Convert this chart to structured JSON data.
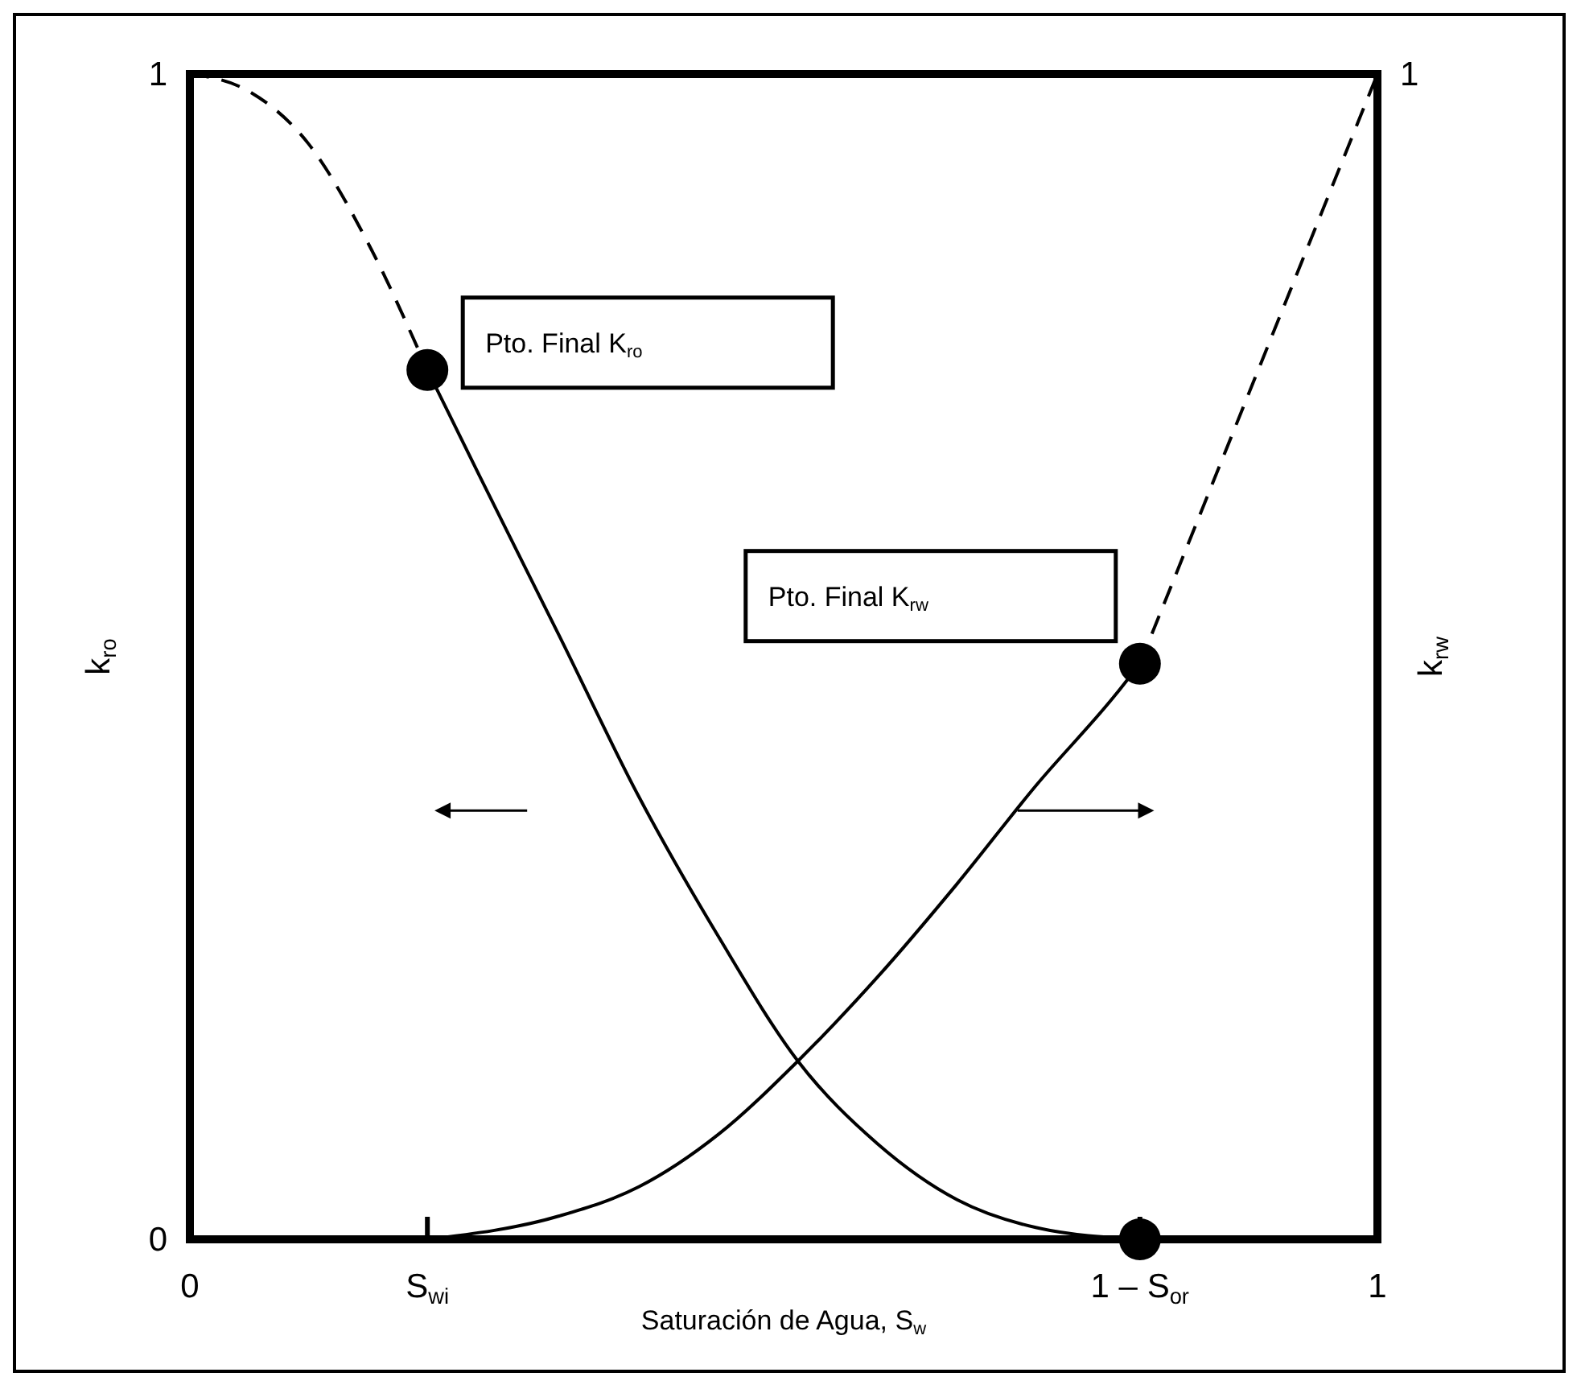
{
  "chart_data": {
    "type": "line",
    "xlabel": "Saturación de Agua, S$_{w}$",
    "ylabel": "k$_{ro}$",
    "y2label": "k$_{rw}$",
    "xlim": [
      0,
      1
    ],
    "xticks": [
      0,
      {
        "value": 0.2,
        "label": "S$_{wi}$"
      },
      {
        "value": 0.8,
        "label": "1 – S$_{or}$"
      },
      1
    ],
    "ylim": [
      0,
      1
    ],
    "yticks": [
      0,
      1
    ],
    "series": [
      {
        "color": "#000000",
        "line_style": "dashed",
        "x": [
          0,
          0.05,
          0.1,
          0.15,
          0.2
        ],
        "values": [
          1,
          0.985,
          0.94,
          0.855,
          0.746
        ]
      },
      {
        "color": "#000000",
        "line_style": "solid",
        "x": [
          0.2,
          0.244,
          0.311,
          0.378,
          0.445,
          0.512,
          0.579,
          0.646,
          0.713,
          0.8
        ],
        "values": [
          0.746,
          0.655,
          0.518,
          0.38,
          0.26,
          0.153,
          0.082,
          0.034,
          0.01,
          0
        ]
      },
      {
        "color": "#000000",
        "line_style": "solid",
        "x": [
          0.2,
          0.311,
          0.378,
          0.445,
          0.512,
          0.579,
          0.646,
          0.713,
          0.78,
          0.8
        ],
        "values": [
          0,
          0.02,
          0.045,
          0.09,
          0.153,
          0.225,
          0.305,
          0.39,
          0.468,
          0.494
        ]
      },
      {
        "color": "#000000",
        "line_style": "dashed",
        "x": [
          0.8,
          1
        ],
        "values": [
          0.494,
          1
        ]
      },
      {
        "type": "scatter",
        "color": "#000000",
        "marker": "circle",
        "x": [
          0.2,
          0.8,
          0.8
        ],
        "values": [
          0.746,
          0.494,
          0
        ]
      }
    ],
    "annotations": [
      "Pto. Final K$_{ro}$",
      "Pto. Final K$_{rw}$",
      {
        "text": "1",
        "x": 1,
        "y": 1
      }
    ]
  }
}
